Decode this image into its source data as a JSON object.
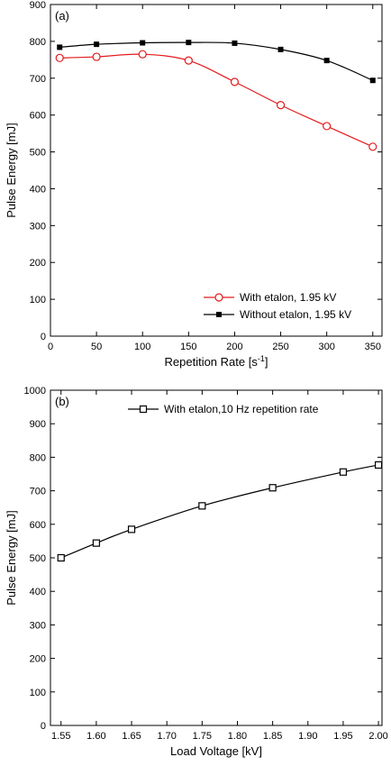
{
  "chart_data": [
    {
      "type": "line",
      "panel_label": "(a)",
      "xlabel": "Repetition Rate [s",
      "xlabel_sup": "-1",
      "xlabel_end": "]",
      "ylabel": "Pulse Energy [mJ]",
      "xlim": [
        0,
        360
      ],
      "ylim": [
        0,
        900
      ],
      "xticks": [
        "0",
        "50",
        "100",
        "150",
        "200",
        "250",
        "300",
        "350"
      ],
      "yticks": [
        "0",
        "100",
        "200",
        "300",
        "400",
        "500",
        "600",
        "700",
        "800",
        "900"
      ],
      "legend_position": "bottom-right",
      "series": [
        {
          "name": "With etalon, 1.95 kV",
          "color": "#e41a1c",
          "marker": "open-circle",
          "x": [
            10,
            50,
            100,
            150,
            200,
            250,
            300,
            350
          ],
          "y": [
            755,
            758,
            765,
            748,
            690,
            627,
            570,
            514
          ]
        },
        {
          "name": "Without etalon, 1.95 kV",
          "color": "#000000",
          "marker": "filled-square",
          "x": [
            10,
            50,
            100,
            150,
            200,
            250,
            300,
            350
          ],
          "y": [
            784,
            792,
            796,
            797,
            795,
            778,
            748,
            694
          ]
        }
      ]
    },
    {
      "type": "line",
      "panel_label": "(b)",
      "xlabel": "Load Voltage [kV]",
      "ylabel": "Pulse Energy [mJ]",
      "xlim": [
        1.535,
        2.005
      ],
      "ylim": [
        0,
        1000
      ],
      "xticks": [
        "1.55",
        "1.60",
        "1.65",
        "1.70",
        "1.75",
        "1.80",
        "1.85",
        "1.90",
        "1.95",
        "2.00"
      ],
      "yticks": [
        "0",
        "100",
        "200",
        "300",
        "400",
        "500",
        "600",
        "700",
        "800",
        "900",
        "1000"
      ],
      "legend_position": "top-right",
      "series": [
        {
          "name": "With etalon,10 Hz repetition rate",
          "color": "#000000",
          "marker": "open-square",
          "x": [
            1.55,
            1.6,
            1.65,
            1.75,
            1.85,
            1.95,
            2.0
          ],
          "y": [
            500,
            544,
            585,
            655,
            709,
            756,
            777
          ]
        }
      ]
    }
  ]
}
